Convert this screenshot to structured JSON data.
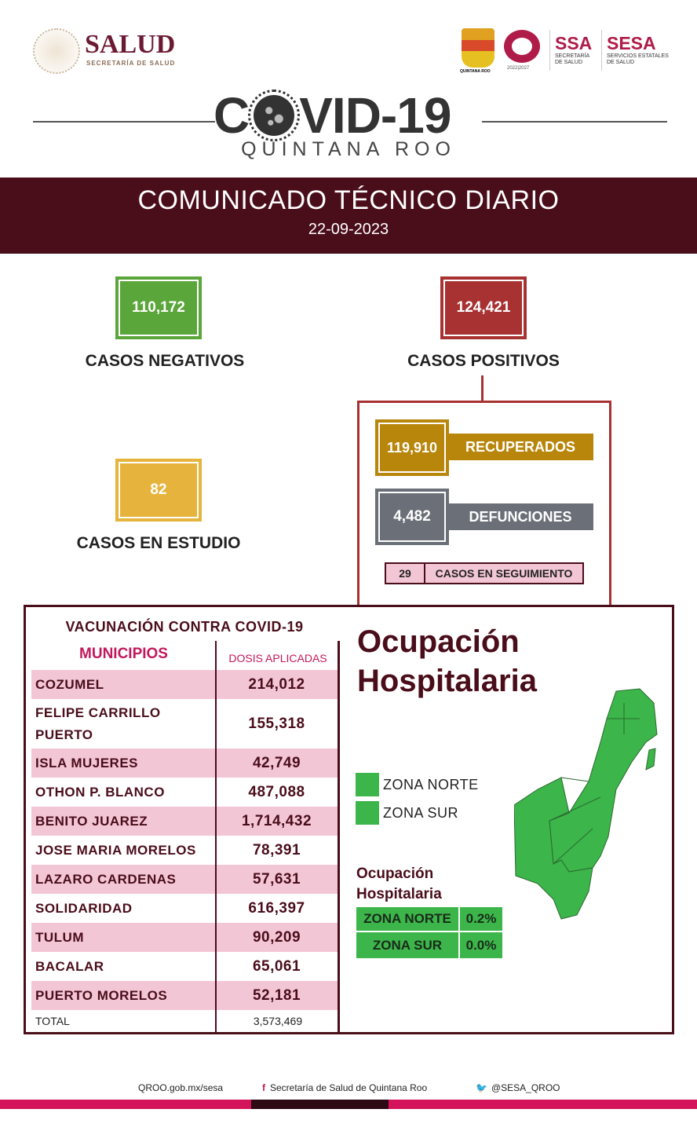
{
  "header": {
    "salud_logo": "SALUD",
    "salud_sub": "SECRETARÍA DE SALUD",
    "qroo_logo": "QUINTANA ROO",
    "q_logo_years": "2022|2027",
    "ssa": "SSA",
    "ssa_sub": "SECRETARÍA DE SALUD",
    "sesa": "SESA",
    "sesa_sub": "SERVICIOS ESTATALES DE SALUD",
    "covid_title_c": "C",
    "covid_title_rest": "VID-19",
    "covid_subtitle": "QUINTANA ROO"
  },
  "banner": {
    "title": "COMUNICADO TÉCNICO DIARIO",
    "date": "22-09-2023"
  },
  "stats": {
    "negativos": {
      "value": "110,172",
      "label": "CASOS NEGATIVOS"
    },
    "positivos": {
      "value": "124,421",
      "label": "CASOS POSITIVOS"
    },
    "estudio": {
      "value": "82",
      "label": "CASOS EN ESTUDIO"
    },
    "recuperados": {
      "value": "119,910",
      "label": "RECUPERADOS"
    },
    "defunciones": {
      "value": "4,482",
      "label": "DEFUNCIONES"
    },
    "seguimiento": {
      "value": "29",
      "label": "CASOS EN SEGUIMIENTO"
    }
  },
  "vacunacion": {
    "title": "VACUNACIÓN CONTRA COVID-19",
    "col_municipios": "MUNICIPIOS",
    "col_dosis": "DOSIS APLICADAS",
    "rows": [
      {
        "m": "COZUMEL",
        "v": "214,012"
      },
      {
        "m": "FELIPE CARRILLO PUERTO",
        "v": "155,318"
      },
      {
        "m": "ISLA MUJERES",
        "v": "42,749"
      },
      {
        "m": "OTHON P. BLANCO",
        "v": "487,088"
      },
      {
        "m": "BENITO JUAREZ",
        "v": "1,714,432"
      },
      {
        "m": "JOSE MARIA MORELOS",
        "v": "78,391"
      },
      {
        "m": "LAZARO CARDENAS",
        "v": "57,631"
      },
      {
        "m": "SOLIDARIDAD",
        "v": "616,397"
      },
      {
        "m": "TULUM",
        "v": "90,209"
      },
      {
        "m": "BACALAR",
        "v": "65,061"
      },
      {
        "m": "PUERTO MORELOS",
        "v": "52,181"
      }
    ],
    "total_label": "TOTAL",
    "total_value": "3,573,469"
  },
  "ocupacion": {
    "title_line1": "Ocupación",
    "title_line2": "Hospitalaria",
    "legend": [
      {
        "label": "ZONA NORTE",
        "color": "#3cb54a"
      },
      {
        "label": "ZONA SUR",
        "color": "#3cb54a"
      }
    ],
    "subtitle_line1": "Ocupación",
    "subtitle_line2": "Hospitalaria",
    "table": [
      {
        "zona": "ZONA NORTE",
        "pct": "0.2%"
      },
      {
        "zona": "ZONA SUR",
        "pct": "0.0%"
      }
    ]
  },
  "footer": {
    "web": "QROO.gob.mx/sesa",
    "facebook": "Secretaría de Salud de Quintana Roo",
    "twitter": "@SESA_QROO"
  },
  "colors": {
    "maroon": "#4a0d1a",
    "green": "#5aa63a",
    "red": "#a83232",
    "gold": "#e6b43c",
    "pink": "#d4145a"
  }
}
